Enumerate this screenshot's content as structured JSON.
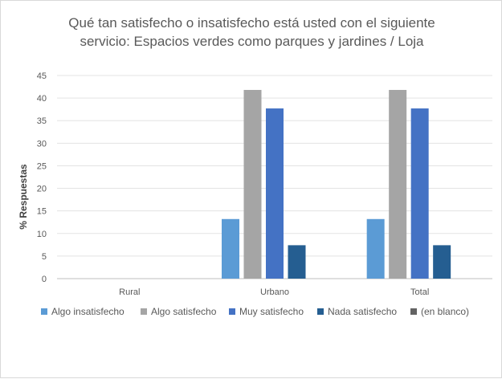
{
  "chart_data": {
    "type": "bar",
    "title": "Qué tan satisfecho o insatisfecho está usted con el siguiente servicio: Espacios verdes como parques y jardines / Loja",
    "title_lines": [
      "Qué tan satisfecho o insatisfecho está usted con el siguiente",
      "servicio: Espacios verdes como parques y jardines / Loja"
    ],
    "xlabel": "",
    "ylabel": "% Respuestas",
    "ylim": [
      0,
      45
    ],
    "yticks": [
      0,
      5,
      10,
      15,
      20,
      25,
      30,
      35,
      40,
      45
    ],
    "grid": true,
    "legend_position": "bottom",
    "categories": [
      "Rural",
      "Urbano",
      "Total"
    ],
    "series": [
      {
        "name": "Algo insatisfecho",
        "color": "#5b9bd5",
        "values": [
          null,
          13.2,
          13.2
        ]
      },
      {
        "name": "Algo satisfecho",
        "color": "#a5a5a5",
        "values": [
          null,
          41.8,
          41.8
        ]
      },
      {
        "name": "Muy satisfecho",
        "color": "#4472c4",
        "values": [
          null,
          37.7,
          37.7
        ]
      },
      {
        "name": "Nada satisfecho",
        "color": "#255e91",
        "values": [
          null,
          7.4,
          7.4
        ]
      },
      {
        "name": "(en blanco)",
        "color": "#636363",
        "values": [
          null,
          null,
          null
        ]
      }
    ]
  }
}
